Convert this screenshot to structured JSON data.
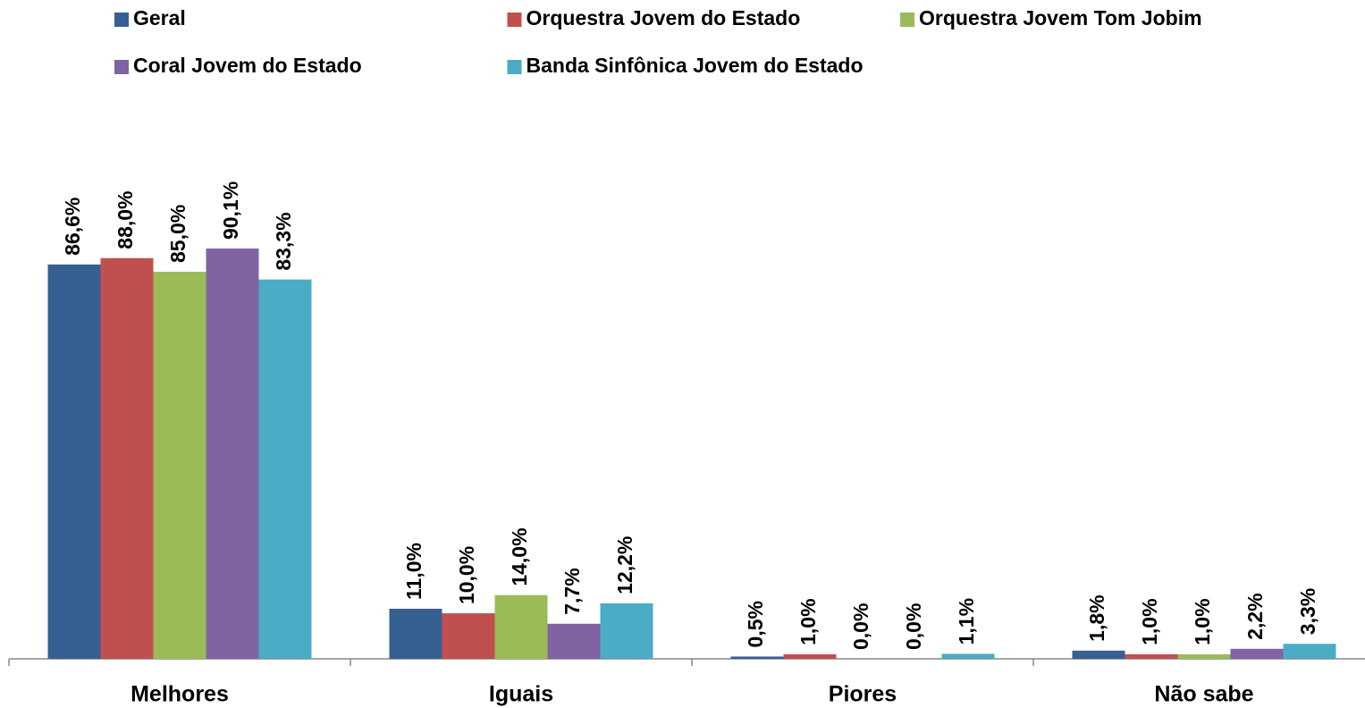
{
  "chart_data": {
    "type": "bar",
    "categories": [
      "Melhores",
      "Iguais",
      "Piores",
      "Não sabe"
    ],
    "series": [
      {
        "name": "Geral",
        "color": "#376092",
        "values": [
          86.6,
          11.0,
          0.5,
          1.8
        ],
        "value_labels": [
          "86,6%",
          "11,0%",
          "0,5%",
          "1,8%"
        ]
      },
      {
        "name": "Orquestra Jovem do Estado",
        "color": "#c0504d",
        "values": [
          88.0,
          10.0,
          1.0,
          1.0
        ],
        "value_labels": [
          "88,0%",
          "10,0%",
          "1,0%",
          "1,0%"
        ]
      },
      {
        "name": "Orquestra Jovem Tom Jobim",
        "color": "#9bbb59",
        "values": [
          85.0,
          14.0,
          0.0,
          1.0
        ],
        "value_labels": [
          "85,0%",
          "14,0%",
          "0,0%",
          "1,0%"
        ]
      },
      {
        "name": "Coral Jovem do Estado",
        "color": "#8064a2",
        "values": [
          90.1,
          7.7,
          0.0,
          2.2
        ],
        "value_labels": [
          "90,1%",
          "7,7%",
          "0,0%",
          "2,2%"
        ]
      },
      {
        "name": "Banda Sinfônica Jovem do Estado",
        "color": "#4bacc6",
        "values": [
          83.3,
          12.2,
          1.1,
          3.3
        ],
        "value_labels": [
          "83,3%",
          "12,2%",
          "1,1%",
          "3,3%"
        ]
      }
    ],
    "ylim": [
      0,
      100
    ],
    "legend": "top"
  }
}
